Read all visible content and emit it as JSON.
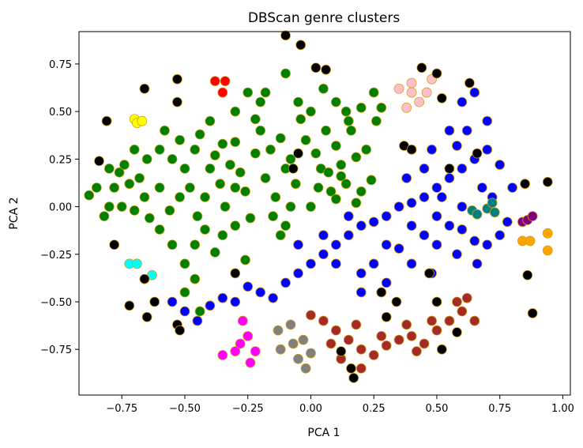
{
  "chart_data": {
    "type": "scatter",
    "title": "DBScan genre clusters",
    "xlabel": "PCA 1",
    "ylabel": "PCA 2",
    "xlim": [
      -0.92,
      1.03
    ],
    "ylim": [
      -0.99,
      0.92
    ],
    "xticks": [
      -0.75,
      -0.5,
      -0.25,
      0.0,
      0.25,
      0.5,
      0.75,
      1.0
    ],
    "xtick_labels": [
      "−0.75",
      "−0.50",
      "−0.25",
      "0.00",
      "0.25",
      "0.50",
      "0.75",
      "1.00"
    ],
    "yticks": [
      -0.75,
      -0.5,
      -0.25,
      0.0,
      0.25,
      0.5,
      0.75
    ],
    "ytick_labels": [
      "−0.75",
      "−0.50",
      "−0.25",
      "0.00",
      "0.25",
      "0.50",
      "0.75"
    ],
    "grid": false,
    "series": [
      {
        "color": "#008000",
        "points": [
          [
            -0.88,
            0.06
          ],
          [
            -0.85,
            0.1
          ],
          [
            -0.8,
            0.0
          ],
          [
            -0.82,
            -0.05
          ],
          [
            -0.78,
            0.1
          ],
          [
            -0.76,
            0.18
          ],
          [
            -0.74,
            0.22
          ],
          [
            -0.7,
            0.3
          ],
          [
            -0.72,
            0.12
          ],
          [
            -0.68,
            0.15
          ],
          [
            -0.66,
            0.05
          ],
          [
            -0.7,
            -0.02
          ],
          [
            -0.64,
            -0.06
          ],
          [
            -0.6,
            0.3
          ],
          [
            -0.58,
            0.4
          ],
          [
            -0.55,
            0.25
          ],
          [
            -0.52,
            0.35
          ],
          [
            -0.5,
            0.2
          ],
          [
            -0.48,
            0.1
          ],
          [
            -0.46,
            0.3
          ],
          [
            -0.44,
            0.38
          ],
          [
            -0.42,
            0.05
          ],
          [
            -0.4,
            0.2
          ],
          [
            -0.38,
            0.27
          ],
          [
            -0.36,
            0.12
          ],
          [
            -0.34,
            0.0
          ],
          [
            -0.32,
            0.22
          ],
          [
            -0.3,
            0.34
          ],
          [
            -0.28,
            0.18
          ],
          [
            -0.26,
            0.08
          ],
          [
            -0.24,
            -0.06
          ],
          [
            -0.22,
            0.28
          ],
          [
            -0.2,
            0.4
          ],
          [
            -0.18,
            0.15
          ],
          [
            -0.16,
            0.3
          ],
          [
            -0.14,
            0.05
          ],
          [
            -0.12,
            0.36
          ],
          [
            -0.1,
            0.2
          ],
          [
            -0.08,
            0.25
          ],
          [
            -0.06,
            0.12
          ],
          [
            -0.04,
            0.46
          ],
          [
            -0.02,
            0.35
          ],
          [
            0.0,
            0.5
          ],
          [
            0.02,
            0.28
          ],
          [
            0.04,
            0.2
          ],
          [
            0.06,
            0.4
          ],
          [
            0.08,
            0.08
          ],
          [
            0.1,
            0.32
          ],
          [
            0.12,
            0.16
          ],
          [
            0.14,
            0.5
          ],
          [
            0.16,
            0.4
          ],
          [
            0.18,
            0.26
          ],
          [
            0.2,
            0.08
          ],
          [
            0.22,
            0.3
          ],
          [
            0.24,
            0.14
          ],
          [
            0.26,
            0.45
          ],
          [
            0.28,
            0.52
          ],
          [
            -0.6,
            -0.12
          ],
          [
            -0.55,
            -0.2
          ],
          [
            -0.5,
            -0.3
          ],
          [
            -0.46,
            -0.2
          ],
          [
            -0.42,
            -0.12
          ],
          [
            -0.38,
            -0.24
          ],
          [
            -0.35,
            -0.15
          ],
          [
            -0.3,
            -0.1
          ],
          [
            -0.26,
            -0.28
          ],
          [
            -0.5,
            -0.45
          ],
          [
            -0.46,
            -0.38
          ],
          [
            -0.44,
            -0.55
          ],
          [
            -0.3,
            0.5
          ],
          [
            -0.25,
            0.6
          ],
          [
            -0.2,
            0.55
          ],
          [
            -0.1,
            0.7
          ],
          [
            -0.05,
            0.55
          ],
          [
            0.05,
            0.62
          ],
          [
            0.1,
            0.55
          ],
          [
            0.15,
            0.45
          ],
          [
            0.2,
            0.52
          ],
          [
            0.25,
            0.6
          ],
          [
            -0.75,
            0.0
          ],
          [
            -0.8,
            0.2
          ],
          [
            -0.65,
            0.25
          ],
          [
            -0.6,
            0.1
          ],
          [
            -0.56,
            -0.02
          ],
          [
            -0.52,
            0.05
          ],
          [
            -0.45,
            -0.05
          ],
          [
            -0.4,
            0.45
          ],
          [
            -0.35,
            0.33
          ],
          [
            -0.15,
            -0.05
          ],
          [
            -0.12,
            -0.15
          ],
          [
            -0.1,
            -0.1
          ],
          [
            -0.08,
            0.0
          ],
          [
            0.0,
            0.0
          ],
          [
            0.03,
            0.1
          ],
          [
            0.07,
            0.18
          ],
          [
            0.1,
            0.04
          ],
          [
            0.14,
            0.12
          ],
          [
            0.18,
            0.02
          ],
          [
            0.12,
            0.22
          ],
          [
            -0.22,
            0.46
          ],
          [
            -0.18,
            0.6
          ],
          [
            -0.3,
            0.1
          ]
        ]
      },
      {
        "color": "#0000ff",
        "points": [
          [
            -0.55,
            -0.5
          ],
          [
            -0.5,
            -0.55
          ],
          [
            -0.45,
            -0.6
          ],
          [
            -0.4,
            -0.52
          ],
          [
            -0.35,
            -0.48
          ],
          [
            -0.3,
            -0.5
          ],
          [
            -0.25,
            -0.42
          ],
          [
            -0.2,
            -0.45
          ],
          [
            -0.15,
            -0.48
          ],
          [
            -0.1,
            -0.4
          ],
          [
            -0.05,
            -0.35
          ],
          [
            0.0,
            -0.3
          ],
          [
            0.05,
            -0.25
          ],
          [
            0.1,
            -0.2
          ],
          [
            0.15,
            -0.15
          ],
          [
            0.2,
            -0.1
          ],
          [
            0.25,
            -0.08
          ],
          [
            0.3,
            -0.05
          ],
          [
            0.35,
            0.0
          ],
          [
            0.4,
            0.02
          ],
          [
            0.45,
            0.05
          ],
          [
            0.5,
            0.1
          ],
          [
            0.55,
            0.15
          ],
          [
            0.6,
            0.2
          ],
          [
            0.65,
            0.25
          ],
          [
            0.7,
            0.3
          ],
          [
            0.75,
            0.22
          ],
          [
            0.8,
            0.1
          ],
          [
            0.55,
            0.4
          ],
          [
            0.6,
            0.55
          ],
          [
            0.65,
            0.6
          ],
          [
            0.7,
            0.45
          ],
          [
            0.58,
            0.32
          ],
          [
            0.62,
            0.4
          ],
          [
            0.1,
            -0.3
          ],
          [
            0.2,
            -0.35
          ],
          [
            0.3,
            -0.4
          ],
          [
            0.4,
            -0.3
          ],
          [
            0.5,
            -0.2
          ],
          [
            0.55,
            -0.1
          ],
          [
            0.6,
            -0.12
          ],
          [
            0.65,
            -0.18
          ],
          [
            0.7,
            -0.2
          ],
          [
            0.75,
            -0.15
          ],
          [
            0.78,
            -0.08
          ],
          [
            0.2,
            -0.45
          ],
          [
            0.25,
            -0.3
          ],
          [
            0.35,
            -0.22
          ],
          [
            0.45,
            -0.15
          ],
          [
            0.3,
            -0.2
          ],
          [
            0.15,
            -0.05
          ],
          [
            0.05,
            -0.15
          ],
          [
            -0.05,
            -0.2
          ],
          [
            0.6,
            0.0
          ],
          [
            0.5,
            -0.05
          ],
          [
            0.4,
            -0.1
          ],
          [
            0.38,
            0.15
          ],
          [
            0.45,
            0.2
          ],
          [
            0.48,
            0.3
          ],
          [
            0.52,
            0.05
          ],
          [
            0.68,
            0.1
          ],
          [
            0.72,
            0.05
          ],
          [
            0.66,
            -0.3
          ],
          [
            0.58,
            -0.25
          ],
          [
            0.48,
            -0.35
          ]
        ]
      },
      {
        "color": "#a52a2a",
        "points": [
          [
            0.0,
            -0.57
          ],
          [
            0.05,
            -0.6
          ],
          [
            0.1,
            -0.65
          ],
          [
            0.15,
            -0.7
          ],
          [
            0.2,
            -0.75
          ],
          [
            0.25,
            -0.78
          ],
          [
            0.3,
            -0.73
          ],
          [
            0.35,
            -0.7
          ],
          [
            0.4,
            -0.68
          ],
          [
            0.45,
            -0.72
          ],
          [
            0.5,
            -0.65
          ],
          [
            0.55,
            -0.6
          ],
          [
            0.6,
            -0.55
          ],
          [
            0.65,
            -0.6
          ],
          [
            0.12,
            -0.8
          ],
          [
            0.2,
            -0.85
          ],
          [
            0.28,
            -0.68
          ],
          [
            0.38,
            -0.62
          ],
          [
            0.48,
            -0.6
          ],
          [
            0.58,
            -0.5
          ],
          [
            0.62,
            -0.48
          ],
          [
            0.08,
            -0.72
          ],
          [
            0.18,
            -0.62
          ],
          [
            0.42,
            -0.76
          ]
        ]
      },
      {
        "color": "#808080",
        "points": [
          [
            -0.13,
            -0.65
          ],
          [
            -0.08,
            -0.62
          ],
          [
            -0.03,
            -0.7
          ],
          [
            -0.05,
            -0.8
          ],
          [
            -0.02,
            -0.85
          ],
          [
            0.0,
            -0.77
          ],
          [
            -0.12,
            -0.75
          ],
          [
            -0.07,
            -0.72
          ]
        ]
      },
      {
        "color": "#ff00ff",
        "points": [
          [
            -0.35,
            -0.78
          ],
          [
            -0.3,
            -0.76
          ],
          [
            -0.28,
            -0.72
          ],
          [
            -0.25,
            -0.68
          ],
          [
            -0.22,
            -0.76
          ],
          [
            -0.24,
            -0.82
          ],
          [
            -0.27,
            -0.6
          ]
        ]
      },
      {
        "color": "#ffc0cb",
        "points": [
          [
            0.35,
            0.62
          ],
          [
            0.4,
            0.6
          ],
          [
            0.43,
            0.55
          ],
          [
            0.38,
            0.52
          ],
          [
            0.46,
            0.6
          ],
          [
            0.48,
            0.67
          ],
          [
            0.4,
            0.65
          ]
        ]
      },
      {
        "color": "#ff0000",
        "points": [
          [
            -0.38,
            0.66
          ],
          [
            -0.34,
            0.66
          ],
          [
            -0.35,
            0.6
          ]
        ]
      },
      {
        "color": "#ffff00",
        "points": [
          [
            -0.7,
            0.46
          ],
          [
            -0.69,
            0.44
          ],
          [
            -0.67,
            0.45
          ]
        ]
      },
      {
        "color": "#00ffff",
        "points": [
          [
            -0.72,
            -0.3
          ],
          [
            -0.69,
            -0.3
          ],
          [
            -0.63,
            -0.36
          ]
        ]
      },
      {
        "color": "#008080",
        "points": [
          [
            0.64,
            -0.02
          ],
          [
            0.66,
            -0.04
          ],
          [
            0.7,
            -0.01
          ],
          [
            0.72,
            0.02
          ],
          [
            0.73,
            -0.03
          ]
        ]
      },
      {
        "color": "#800080",
        "points": [
          [
            0.84,
            -0.08
          ],
          [
            0.86,
            -0.07
          ],
          [
            0.88,
            -0.05
          ]
        ]
      },
      {
        "color": "#ffa500",
        "points": [
          [
            0.84,
            -0.18
          ],
          [
            0.87,
            -0.18
          ],
          [
            0.94,
            -0.14
          ],
          [
            0.94,
            -0.23
          ]
        ]
      },
      {
        "color": "#000000",
        "points": [
          [
            -0.81,
            0.45
          ],
          [
            -0.84,
            0.24
          ],
          [
            -0.78,
            -0.2
          ],
          [
            -0.72,
            -0.52
          ],
          [
            -0.65,
            -0.58
          ],
          [
            -0.62,
            -0.5
          ],
          [
            -0.66,
            -0.38
          ],
          [
            -0.53,
            -0.62
          ],
          [
            -0.52,
            -0.65
          ],
          [
            -0.66,
            0.62
          ],
          [
            -0.53,
            0.67
          ],
          [
            -0.53,
            0.55
          ],
          [
            -0.1,
            0.9
          ],
          [
            -0.04,
            0.85
          ],
          [
            0.02,
            0.73
          ],
          [
            0.06,
            0.72
          ],
          [
            -0.07,
            0.2
          ],
          [
            -0.05,
            0.28
          ],
          [
            0.12,
            -0.76
          ],
          [
            0.16,
            -0.85
          ],
          [
            0.17,
            -0.9
          ],
          [
            0.34,
            -0.5
          ],
          [
            0.3,
            -0.58
          ],
          [
            0.47,
            -0.35
          ],
          [
            0.44,
            0.73
          ],
          [
            0.5,
            0.7
          ],
          [
            0.52,
            0.57
          ],
          [
            0.37,
            0.32
          ],
          [
            0.4,
            0.3
          ],
          [
            0.55,
            0.2
          ],
          [
            0.63,
            0.65
          ],
          [
            0.66,
            0.28
          ],
          [
            0.85,
            0.12
          ],
          [
            0.94,
            0.13
          ],
          [
            0.86,
            -0.36
          ],
          [
            0.88,
            -0.56
          ],
          [
            0.52,
            -0.75
          ],
          [
            0.58,
            -0.66
          ],
          [
            0.5,
            -0.5
          ],
          [
            0.28,
            -0.45
          ],
          [
            -0.3,
            -0.35
          ]
        ]
      }
    ]
  }
}
